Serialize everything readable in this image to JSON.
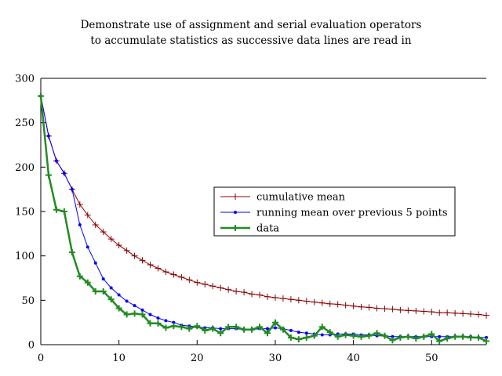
{
  "chart_data": {
    "type": "line",
    "title": [
      "Demonstrate use of assignment and serial evaluation operators",
      "to accumulate statistics as successive data lines are read in"
    ],
    "xlabel": "",
    "ylabel": "",
    "xlim": [
      0,
      57
    ],
    "ylim": [
      0,
      300
    ],
    "xticks": [
      0,
      10,
      20,
      30,
      40,
      50
    ],
    "yticks": [
      0,
      50,
      100,
      150,
      200,
      250,
      300
    ],
    "grid": false,
    "legend_position": "center-right",
    "x": [
      0,
      1,
      2,
      3,
      4,
      5,
      6,
      7,
      8,
      9,
      10,
      11,
      12,
      13,
      14,
      15,
      16,
      17,
      18,
      19,
      20,
      21,
      22,
      23,
      24,
      25,
      26,
      27,
      28,
      29,
      30,
      31,
      32,
      33,
      34,
      35,
      36,
      37,
      38,
      39,
      40,
      41,
      42,
      43,
      44,
      45,
      46,
      47,
      48,
      49,
      50,
      51,
      52,
      53,
      54,
      55,
      56,
      57
    ],
    "series": [
      {
        "name": "cumulative mean",
        "color": "#8b0000",
        "marker": "plus",
        "line_width": 1,
        "values": [
          280,
          235,
          207,
          193,
          175,
          158,
          146,
          135,
          127,
          119,
          112,
          106,
          100,
          95,
          90,
          86,
          82,
          79,
          76,
          73,
          70,
          68,
          66,
          64,
          62,
          60,
          59,
          57,
          56,
          54,
          53,
          52,
          51,
          50,
          49,
          48,
          47,
          46,
          45.5,
          44.5,
          43.5,
          42.5,
          42,
          41,
          40.5,
          40,
          39,
          38.5,
          38,
          37.5,
          37,
          36,
          36,
          35.5,
          35,
          34.5,
          34,
          33
        ]
      },
      {
        "name": "running mean over previous 5 points",
        "color": "#0000ff",
        "marker": "dot",
        "line_width": 1,
        "values": [
          280,
          235,
          207,
          193,
          175,
          135,
          110,
          92,
          74,
          64,
          56,
          49,
          44,
          39,
          34,
          30,
          27,
          25,
          22,
          21,
          20,
          19,
          19,
          18,
          18,
          18,
          17,
          17,
          18,
          18,
          19,
          18,
          16,
          14,
          13,
          12,
          11,
          11,
          12,
          12,
          12,
          11,
          11,
          10,
          10,
          9,
          9,
          9,
          9,
          9,
          9,
          9,
          9,
          9,
          9,
          9,
          8,
          8
        ]
      },
      {
        "name": "data",
        "color": "#228b22",
        "marker": "plus",
        "line_width": 2.5,
        "values": [
          280,
          191,
          152,
          150,
          104,
          77,
          70,
          60,
          60,
          51,
          41,
          34,
          35,
          34,
          24,
          24,
          19,
          21,
          20,
          18,
          21,
          16,
          18,
          13,
          20,
          20,
          17,
          17,
          20,
          13,
          25,
          17,
          8,
          6,
          8,
          10,
          20,
          14,
          9,
          11,
          10,
          9,
          10,
          13,
          10,
          5,
          8,
          9,
          7,
          9,
          12,
          4,
          7,
          9,
          9,
          8,
          8,
          4
        ]
      }
    ]
  }
}
